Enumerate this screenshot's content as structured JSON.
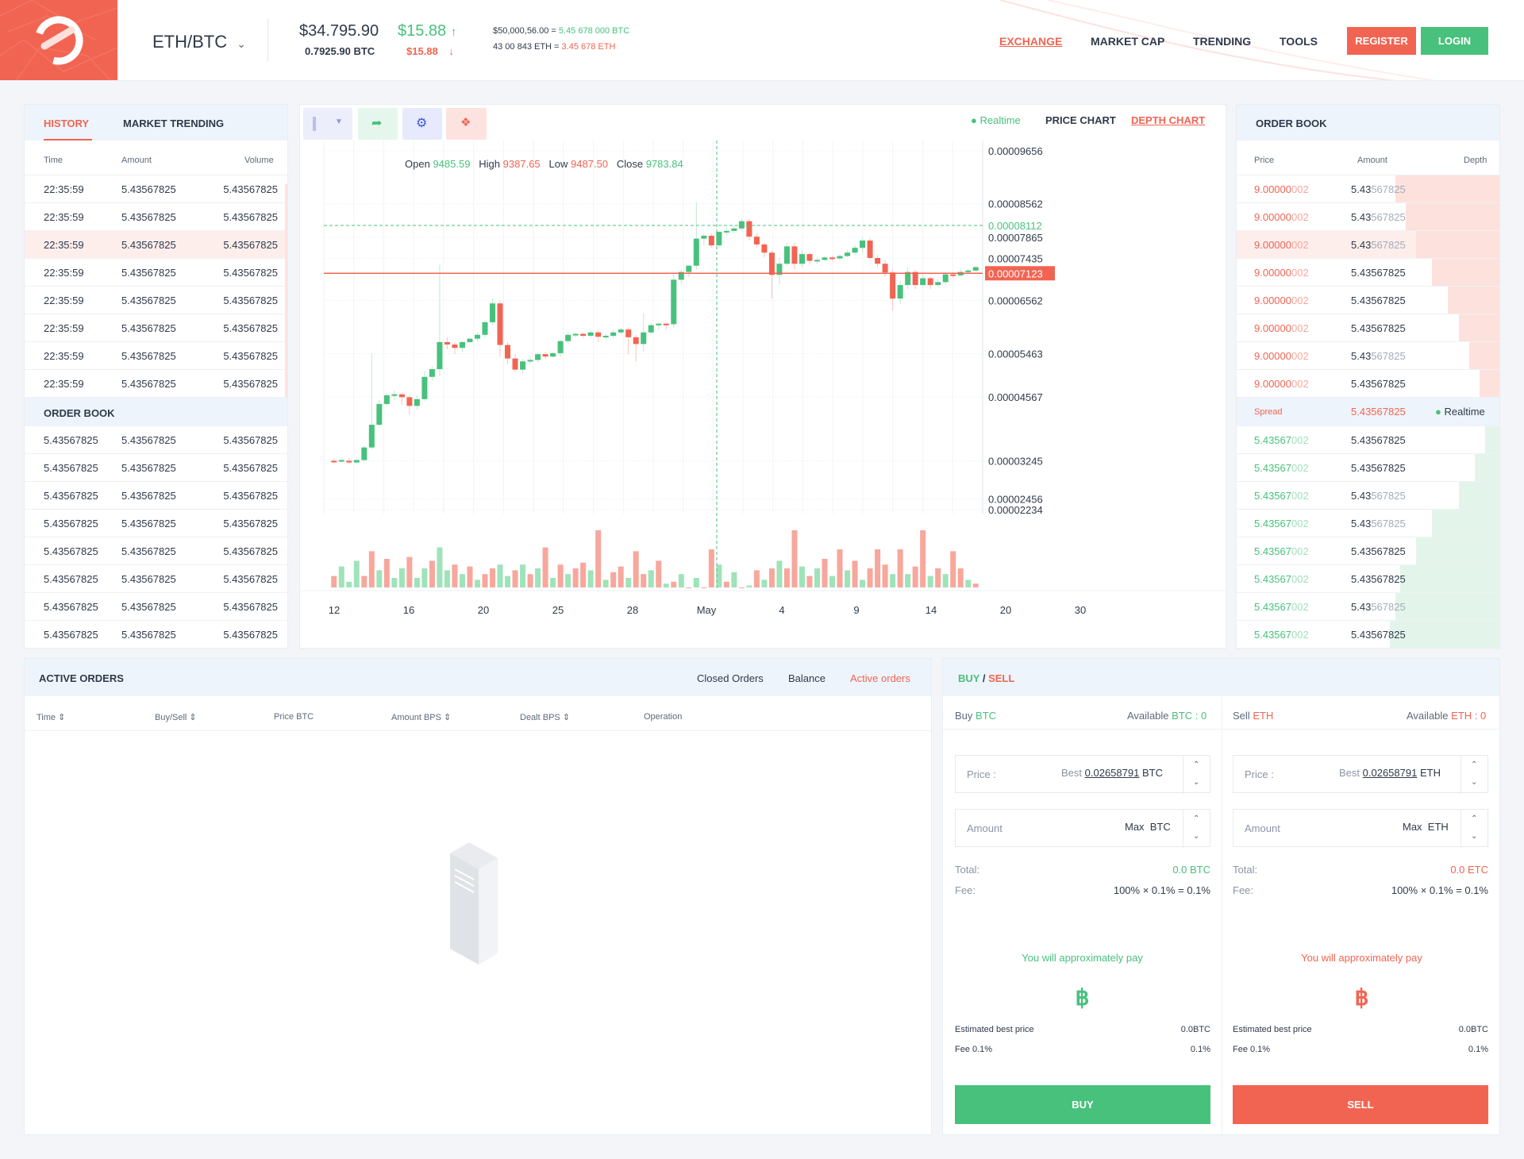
{
  "header": {
    "pair": "ETH/BTC",
    "price_usd": "$34.795.90",
    "price_btc": "0.7925.90 BTC",
    "change_up": "$15.88",
    "change_down": "$15.88",
    "stat1_a": "$50,000,56.00 =",
    "stat1_b": "5.45 678 000 BTC",
    "stat2_a": "43 00 843 ETH =",
    "stat2_b": "3.45 678 ETH",
    "nav": [
      "EXCHANGE",
      "MARKET CAP",
      "TRENDING",
      "TOOLS"
    ],
    "register": "REGISTER",
    "login": "LOGIN"
  },
  "history": {
    "tabs": [
      "HISTORY",
      "MARKET TRENDING"
    ],
    "cols": [
      "Time",
      "Amount",
      "Volume"
    ],
    "rows": [
      [
        "22:35:59",
        "5.43567825",
        "5.43567825"
      ],
      [
        "22:35:59",
        "5.43567825",
        "5.43567825"
      ],
      [
        "22:35:59",
        "5.43567825",
        "5.43567825"
      ],
      [
        "22:35:59",
        "5.43567825",
        "5.43567825"
      ],
      [
        "22:35:59",
        "5.43567825",
        "5.43567825"
      ],
      [
        "22:35:59",
        "5.43567825",
        "5.43567825"
      ],
      [
        "22:35:59",
        "5.43567825",
        "5.43567825"
      ],
      [
        "22:35:59",
        "5.43567825",
        "5.43567825"
      ]
    ],
    "orderbook_title": "ORDER BOOK",
    "orderbook_rows": [
      [
        "5.43567825",
        "5.43567825",
        "5.43567825"
      ],
      [
        "5.43567825",
        "5.43567825",
        "5.43567825"
      ],
      [
        "5.43567825",
        "5.43567825",
        "5.43567825"
      ],
      [
        "5.43567825",
        "5.43567825",
        "5.43567825"
      ],
      [
        "5.43567825",
        "5.43567825",
        "5.43567825"
      ],
      [
        "5.43567825",
        "5.43567825",
        "5.43567825"
      ],
      [
        "5.43567825",
        "5.43567825",
        "5.43567825"
      ],
      [
        "5.43567825",
        "5.43567825",
        "5.43567825"
      ]
    ]
  },
  "chart_panel": {
    "realtime": "Realtime",
    "price_chart": "PRICE CHART",
    "depth_chart": "DEPTH CHART",
    "ohlc_labels": [
      "Open",
      "High",
      "Low",
      "Close"
    ],
    "ohlc_values": [
      "9485.59",
      "9387.65",
      "9487.50",
      "9783.84"
    ],
    "crosshair_price": "0.00008112",
    "current_price": "0.00007123"
  },
  "chart_data": {
    "type": "candlestick",
    "y_ticks": [
      "0.00009656",
      "0.00008562",
      "0.00007865",
      "0.00007435",
      "0.00006562",
      "0.00005463",
      "0.00004567",
      "0.00003245",
      "0.00002456",
      "0.00002234"
    ],
    "x_ticks": [
      "12",
      "16",
      "20",
      "25",
      "28",
      "May",
      "4",
      "9",
      "14",
      "20",
      "30"
    ],
    "candles": [
      {
        "o": 3.245e-05,
        "c": 3.24e-05,
        "h": 3.3e-05,
        "l": 3.2e-05
      },
      {
        "o": 3.24e-05,
        "c": 3.26e-05,
        "h": 3.3e-05,
        "l": 3.2e-05
      },
      {
        "o": 3.245e-05,
        "c": 3.21e-05,
        "h": 3.3e-05,
        "l": 3.18e-05
      },
      {
        "o": 3.21e-05,
        "c": 3.26e-05,
        "h": 3.28e-05,
        "l": 3.19e-05
      },
      {
        "o": 3.26e-05,
        "c": 3.52e-05,
        "h": 3.56e-05,
        "l": 3.22e-05
      },
      {
        "o": 3.52e-05,
        "c": 3.99e-05,
        "h": 5.463e-05,
        "l": 3.48e-05
      },
      {
        "o": 3.99e-05,
        "c": 4.42e-05,
        "h": 4.5e-05,
        "l": 3.95e-05
      },
      {
        "o": 4.42e-05,
        "c": 4.6e-05,
        "h": 4.64e-05,
        "l": 4.38e-05
      },
      {
        "o": 4.6e-05,
        "c": 4.62e-05,
        "h": 4.7e-05,
        "l": 4.5e-05
      },
      {
        "o": 4.62e-05,
        "c": 4.56e-05,
        "h": 4.65e-05,
        "l": 4.4e-05
      },
      {
        "o": 4.56e-05,
        "c": 4.38e-05,
        "h": 4.6e-05,
        "l": 4.2e-05
      },
      {
        "o": 4.38e-05,
        "c": 4.52e-05,
        "h": 4.6e-05,
        "l": 4.3e-05
      },
      {
        "o": 4.52e-05,
        "c": 4.98e-05,
        "h": 5.1e-05,
        "l": 4.48e-05
      },
      {
        "o": 4.98e-05,
        "c": 5.14e-05,
        "h": 5.2e-05,
        "l": 4.9e-05
      },
      {
        "o": 5.14e-05,
        "c": 5.7e-05,
        "h": 7.3e-05,
        "l": 5e-05
      },
      {
        "o": 5.7e-05,
        "c": 5.65e-05,
        "h": 5.8e-05,
        "l": 5.55e-05
      },
      {
        "o": 5.65e-05,
        "c": 5.58e-05,
        "h": 5.7e-05,
        "l": 5.45e-05
      },
      {
        "o": 5.58e-05,
        "c": 5.7e-05,
        "h": 5.72e-05,
        "l": 5.5e-05
      },
      {
        "o": 5.7e-05,
        "c": 5.77e-05,
        "h": 5.78e-05,
        "l": 5.68e-05
      },
      {
        "o": 5.77e-05,
        "c": 5.85e-05,
        "h": 5.9e-05,
        "l": 5.72e-05
      },
      {
        "o": 5.85e-05,
        "c": 6.11e-05,
        "h": 6.15e-05,
        "l": 5.8e-05
      },
      {
        "o": 6.11e-05,
        "c": 6.5e-05,
        "h": 6.6e-05,
        "l": 6.05e-05
      },
      {
        "o": 6.5e-05,
        "c": 5.64e-05,
        "h": 6.55e-05,
        "l": 5.4e-05
      },
      {
        "o": 5.64e-05,
        "c": 5.36e-05,
        "h": 5.7e-05,
        "l": 5.25e-05
      },
      {
        "o": 5.36e-05,
        "c": 5.13e-05,
        "h": 5.45e-05,
        "l": 5.08e-05
      },
      {
        "o": 5.13e-05,
        "c": 5.3e-05,
        "h": 5.35e-05,
        "l": 5.05e-05
      },
      {
        "o": 5.3e-05,
        "c": 5.33e-05,
        "h": 5.4e-05,
        "l": 5.25e-05
      },
      {
        "o": 5.33e-05,
        "c": 5.45e-05,
        "h": 5.48e-05,
        "l": 5.28e-05
      },
      {
        "o": 5.45e-05,
        "c": 5.4e-05,
        "h": 5.5e-05,
        "l": 5.35e-05
      },
      {
        "o": 5.4e-05,
        "c": 5.47e-05,
        "h": 5.5e-05,
        "l": 5.38e-05
      },
      {
        "o": 5.47e-05,
        "c": 5.72e-05,
        "h": 5.75e-05,
        "l": 5.4e-05
      },
      {
        "o": 5.72e-05,
        "c": 5.85e-05,
        "h": 5.9e-05,
        "l": 5.68e-05
      },
      {
        "o": 5.85e-05,
        "c": 5.87e-05,
        "h": 5.9e-05,
        "l": 5.8e-05
      },
      {
        "o": 5.87e-05,
        "c": 5.83e-05,
        "h": 5.9e-05,
        "l": 5.78e-05
      },
      {
        "o": 5.83e-05,
        "c": 5.9e-05,
        "h": 5.95e-05,
        "l": 5.78e-05
      },
      {
        "o": 5.9e-05,
        "c": 5.81e-05,
        "h": 5.95e-05,
        "l": 5.7e-05
      },
      {
        "o": 5.81e-05,
        "c": 5.83e-05,
        "h": 5.87e-05,
        "l": 5.75e-05
      },
      {
        "o": 5.83e-05,
        "c": 5.9e-05,
        "h": 5.95e-05,
        "l": 5.78e-05
      },
      {
        "o": 5.9e-05,
        "c": 5.96e-05,
        "h": 6e-05,
        "l": 5.85e-05
      },
      {
        "o": 5.96e-05,
        "c": 5.8e-05,
        "h": 6e-05,
        "l": 5.45e-05
      },
      {
        "o": 5.8e-05,
        "c": 5.66e-05,
        "h": 5.85e-05,
        "l": 5.3e-05
      },
      {
        "o": 5.66e-05,
        "c": 5.9e-05,
        "h": 6.3e-05,
        "l": 5.5e-05
      },
      {
        "o": 5.9e-05,
        "c": 6.05e-05,
        "h": 6.1e-05,
        "l": 5.85e-05
      },
      {
        "o": 6.05e-05,
        "c": 6.08e-05,
        "h": 6.1e-05,
        "l": 5.95e-05
      },
      {
        "o": 6.08e-05,
        "c": 6.07e-05,
        "h": 6.1e-05,
        "l": 5.95e-05
      },
      {
        "o": 6.07e-05,
        "c": 6.99e-05,
        "h": 7.1e-05,
        "l": 6e-05
      },
      {
        "o": 6.99e-05,
        "c": 7.15e-05,
        "h": 7.2e-05,
        "l": 6.9e-05
      },
      {
        "o": 7.15e-05,
        "c": 7.28e-05,
        "h": 7.3e-05,
        "l": 7.05e-05
      },
      {
        "o": 7.28e-05,
        "c": 7.84e-05,
        "h": 8.6e-05,
        "l": 7.2e-05
      },
      {
        "o": 7.84e-05,
        "c": 7.9e-05,
        "h": 7.95e-05,
        "l": 7.7e-05
      },
      {
        "o": 7.9e-05,
        "c": 7.7e-05,
        "h": 7.95e-05,
        "l": 7.65e-05
      },
      {
        "o": 7.7e-05,
        "c": 7.98e-05,
        "h": 8e-05,
        "l": 7.65e-05
      },
      {
        "o": 7.98e-05,
        "c": 8e-05,
        "h": 8.05e-05,
        "l": 7.9e-05
      },
      {
        "o": 8e-05,
        "c": 8.05e-05,
        "h": 8.1e-05,
        "l": 7.95e-05
      },
      {
        "o": 8.05e-05,
        "c": 8.2e-05,
        "h": 8.25e-05,
        "l": 8e-05
      },
      {
        "o": 8.2e-05,
        "c": 7.88e-05,
        "h": 8.25e-05,
        "l": 7.8e-05
      },
      {
        "o": 7.88e-05,
        "c": 7.72e-05,
        "h": 7.95e-05,
        "l": 7.65e-05
      },
      {
        "o": 7.72e-05,
        "c": 7.55e-05,
        "h": 7.75e-05,
        "l": 7.45e-05
      },
      {
        "o": 7.55e-05,
        "c": 7.09e-05,
        "h": 7.6e-05,
        "l": 6.6e-05
      },
      {
        "o": 7.09e-05,
        "c": 7.32e-05,
        "h": 7.45e-05,
        "l": 6.9e-05
      },
      {
        "o": 7.32e-05,
        "c": 7.68e-05,
        "h": 7.75e-05,
        "l": 7.28e-05
      },
      {
        "o": 7.68e-05,
        "c": 7.32e-05,
        "h": 7.75e-05,
        "l": 7.2e-05
      },
      {
        "o": 7.32e-05,
        "c": 7.52e-05,
        "h": 7.6e-05,
        "l": 7.25e-05
      },
      {
        "o": 7.52e-05,
        "c": 7.38e-05,
        "h": 7.55e-05,
        "l": 7.3e-05
      },
      {
        "o": 7.38e-05,
        "c": 7.4e-05,
        "h": 7.45e-05,
        "l": 7.32e-05
      },
      {
        "o": 7.4e-05,
        "c": 7.45e-05,
        "h": 7.48e-05,
        "l": 7.37e-05
      },
      {
        "o": 7.45e-05,
        "c": 7.43e-05,
        "h": 7.48e-05,
        "l": 7.38e-05
      },
      {
        "o": 7.43e-05,
        "c": 7.48e-05,
        "h": 7.52e-05,
        "l": 7.4e-05
      },
      {
        "o": 7.48e-05,
        "c": 7.55e-05,
        "h": 7.6e-05,
        "l": 7.45e-05
      },
      {
        "o": 7.55e-05,
        "c": 7.65e-05,
        "h": 7.7e-05,
        "l": 7.5e-05
      },
      {
        "o": 7.65e-05,
        "c": 7.8e-05,
        "h": 7.85e-05,
        "l": 7.55e-05
      },
      {
        "o": 7.8e-05,
        "c": 7.44e-05,
        "h": 7.85e-05,
        "l": 7.4e-05
      },
      {
        "o": 7.44e-05,
        "c": 7.32e-05,
        "h": 7.5e-05,
        "l": 7.25e-05
      },
      {
        "o": 7.32e-05,
        "c": 7.14e-05,
        "h": 7.4e-05,
        "l": 7.05e-05
      },
      {
        "o": 7.14e-05,
        "c": 6.6e-05,
        "h": 7.2e-05,
        "l": 6.35e-05
      },
      {
        "o": 6.6e-05,
        "c": 6.88e-05,
        "h": 6.95e-05,
        "l": 6.5e-05
      },
      {
        "o": 6.88e-05,
        "c": 7.15e-05,
        "h": 7.25e-05,
        "l": 6.8e-05
      },
      {
        "o": 7.15e-05,
        "c": 6.88e-05,
        "h": 7.2e-05,
        "l": 6.8e-05
      },
      {
        "o": 6.88e-05,
        "c": 7.02e-05,
        "h": 7.1e-05,
        "l": 6.85e-05
      },
      {
        "o": 7.02e-05,
        "c": 6.88e-05,
        "h": 7.05e-05,
        "l": 6.8e-05
      },
      {
        "o": 6.88e-05,
        "c": 6.94e-05,
        "h": 7e-05,
        "l": 6.85e-05
      },
      {
        "o": 6.94e-05,
        "c": 7.1e-05,
        "h": 7.15e-05,
        "l": 6.9e-05
      },
      {
        "o": 7.1e-05,
        "c": 7.08e-05,
        "h": 7.15e-05,
        "l": 7.03e-05
      },
      {
        "o": 7.08e-05,
        "c": 7.15e-05,
        "h": 7.2e-05,
        "l": 7.05e-05
      },
      {
        "o": 7.15e-05,
        "c": 7.18e-05,
        "h": 7.22e-05,
        "l": 7.12e-05
      },
      {
        "o": 7.18e-05,
        "c": 7.25e-05,
        "h": 7.28e-05,
        "l": 7.15e-05
      }
    ],
    "volume": [
      12,
      22,
      6,
      28,
      12,
      38,
      18,
      30,
      10,
      20,
      32,
      10,
      20,
      28,
      42,
      18,
      24,
      14,
      22,
      8,
      14,
      20,
      24,
      12,
      18,
      24,
      14,
      20,
      42,
      10,
      24,
      14,
      20,
      26,
      18,
      60,
      8,
      16,
      22,
      10,
      38,
      14,
      18,
      28,
      4,
      6,
      14,
      0,
      10,
      0,
      40,
      24,
      6,
      16,
      0,
      2,
      18,
      8,
      20,
      28,
      20,
      60,
      22,
      12,
      20,
      30,
      12,
      40,
      18,
      28,
      8,
      20,
      40,
      24,
      14,
      40,
      14,
      22,
      60,
      12,
      20,
      14,
      38,
      20,
      8,
      4
    ],
    "volume_up": [
      false,
      true,
      true,
      true,
      false,
      false,
      true,
      false,
      true,
      true,
      false,
      true,
      true,
      false,
      true,
      true,
      false,
      true,
      false,
      true,
      false,
      false,
      true,
      true,
      false,
      true,
      false,
      true,
      false,
      true,
      false,
      true,
      false,
      false,
      true,
      false,
      true,
      false,
      false,
      true,
      false,
      false,
      true,
      false,
      true,
      false,
      true,
      false,
      true,
      false,
      false,
      true,
      false,
      true,
      false,
      true,
      false,
      true,
      false,
      true,
      false,
      false,
      true,
      false,
      true,
      false,
      true,
      false,
      true,
      false,
      true,
      false,
      false,
      false,
      true,
      false,
      true,
      false,
      false,
      true,
      false,
      true,
      false,
      false,
      true,
      false
    ]
  },
  "orderbook": {
    "title": "ORDER BOOK",
    "cols": [
      "Price",
      "Amount",
      "Depth"
    ],
    "asks": [
      {
        "p1": "9.00000",
        "p2": "002",
        "a1": "5.43",
        "a2": "567825",
        "d": 0.4
      },
      {
        "p1": "9.00000",
        "p2": "002",
        "a1": "5.43",
        "a2": "567825",
        "d": 0.36
      },
      {
        "p1": "9.00000",
        "p2": "002",
        "a1": "5.43",
        "a2": "567825",
        "d": 0.32
      },
      {
        "p1": "9.00000",
        "p2": "002",
        "a1": "5.43567825",
        "a2": "",
        "d": 0.26
      },
      {
        "p1": "9.00000",
        "p2": "002",
        "a1": "5.43567825",
        "a2": "",
        "d": 0.2
      },
      {
        "p1": "9.00000",
        "p2": "002",
        "a1": "5.43567825",
        "a2": "",
        "d": 0.16
      },
      {
        "p1": "9.00000",
        "p2": "002",
        "a1": "5.43",
        "a2": "567825",
        "d": 0.12
      },
      {
        "p1": "9.00000",
        "p2": "002",
        "a1": "5.43567825",
        "a2": "",
        "d": 0.08
      }
    ],
    "spread_label": "Spread",
    "spread_value": "5.43567825",
    "spread_realtime": "Realtime",
    "bids": [
      {
        "p1": "5.43567",
        "p2": "002",
        "a1": "5.43567825",
        "a2": "",
        "d": 0.06
      },
      {
        "p1": "5.43567",
        "p2": "002",
        "a1": "5.43567825",
        "a2": "",
        "d": 0.1
      },
      {
        "p1": "5.43567",
        "p2": "002",
        "a1": "5.43",
        "a2": "567825",
        "d": 0.16
      },
      {
        "p1": "5.43567",
        "p2": "002",
        "a1": "5.43",
        "a2": "567825",
        "d": 0.26
      },
      {
        "p1": "5.43567",
        "p2": "002",
        "a1": "5.43567825",
        "a2": "",
        "d": 0.32
      },
      {
        "p1": "5.43567",
        "p2": "002",
        "a1": "5.43567825",
        "a2": "",
        "d": 0.38
      },
      {
        "p1": "5.43567",
        "p2": "002",
        "a1": "5.43",
        "a2": "567825",
        "d": 0.4
      },
      {
        "p1": "5.43567",
        "p2": "002",
        "a1": "5.43567825",
        "a2": "",
        "d": 0.42
      }
    ]
  },
  "orders": {
    "title": "ACTIVE ORDERS",
    "tabs": [
      "Closed Orders",
      "Balance",
      "Active orders"
    ],
    "cols": [
      "Time",
      "Buy/Sell",
      "Price BTC",
      "Amount BPS",
      "Dealt BPS",
      "Operation"
    ]
  },
  "trade": {
    "title_buy": "BUY",
    "title_sep": " / ",
    "title_sell": "SELL",
    "buy": {
      "head": "Buy",
      "head_cur": "BTC",
      "avail": "Available",
      "avail_val": "BTC : 0",
      "price_label": "Price :",
      "best": "Best",
      "best_val": "0.02658791",
      "cur": "BTC",
      "amount_label": "Amount",
      "max": "Max",
      "total_label": "Total:",
      "total_val": "0.0 BTC",
      "fee_label": "Fee:",
      "fee_val": "100% × 0.1% = 0.1%",
      "pay": "You will approximately pay",
      "symbol": "฿",
      "est_label": "Estimated best price",
      "est_val": "0.0BTC",
      "fee2_label": "Fee 0.1%",
      "fee2_val": "0.1%",
      "button": "BUY"
    },
    "sell": {
      "head": "Sell",
      "head_cur": "ETH",
      "avail": "Available",
      "avail_val": "ETH : 0",
      "price_label": "Price :",
      "best": "Best",
      "best_val": "0.02658791",
      "cur": "ETH",
      "amount_label": "Amount",
      "max": "Max",
      "total_label": "Total:",
      "total_val": "0.0 ETC",
      "fee_label": "Fee:",
      "fee_val": "100% × 0.1% = 0.1%",
      "pay": "You will approximately pay",
      "symbol": "฿",
      "est_label": "Estimated best price",
      "est_val": "0.0BTC",
      "fee2_label": "Fee 0.1%",
      "fee2_val": "0.1%",
      "button": "SELL"
    }
  },
  "colors": {
    "accent": "#f26452",
    "green": "#48c17c",
    "text": "#2f3a4a"
  }
}
